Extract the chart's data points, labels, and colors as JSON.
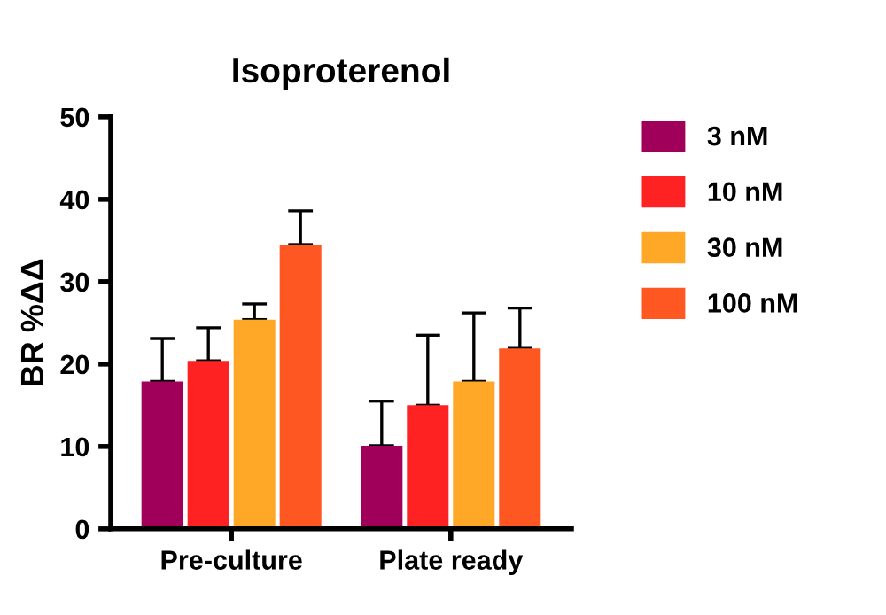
{
  "chart_data": {
    "type": "bar",
    "title": "Isoproterenol",
    "ylabel": "BR %ΔΔ",
    "categories": [
      "Pre-culture",
      "Plate ready"
    ],
    "series": [
      {
        "name": "3 nM",
        "color": "#a0005a",
        "values": [
          17.9,
          10.1
        ],
        "errors": [
          5.2,
          5.4
        ]
      },
      {
        "name": "10 nM",
        "color": "#ff2222",
        "values": [
          20.4,
          15.0
        ],
        "errors": [
          4.0,
          8.5
        ]
      },
      {
        "name": "30 nM",
        "color": "#ffa726",
        "values": [
          25.4,
          17.9
        ],
        "errors": [
          1.9,
          8.3
        ]
      },
      {
        "name": "100 nM",
        "color": "#ff5722",
        "values": [
          34.5,
          21.9
        ],
        "errors": [
          4.1,
          4.9
        ]
      }
    ],
    "ylim": [
      0,
      50
    ],
    "yticks": [
      0,
      10,
      20,
      30,
      40,
      50
    ],
    "grid": false,
    "legend": "right"
  }
}
